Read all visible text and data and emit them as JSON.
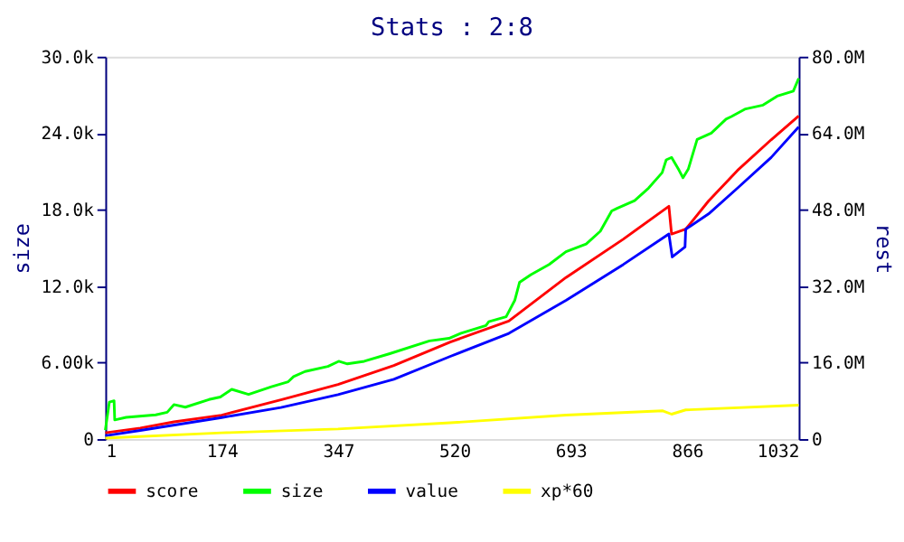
{
  "chart_data": {
    "type": "line",
    "title": "Stats : 2:8",
    "ylabel": "size",
    "y2label": "rest",
    "xlim": [
      1,
      1032
    ],
    "xticks": [
      1,
      174,
      347,
      520,
      693,
      866,
      1032
    ],
    "ylim": [
      0,
      30000
    ],
    "yticks": [
      {
        "value": 0,
        "label": "0"
      },
      {
        "value": 6000,
        "label": "6.00k"
      },
      {
        "value": 12000,
        "label": "12.0k"
      },
      {
        "value": 18000,
        "label": "18.0k"
      },
      {
        "value": 24000,
        "label": "24.0k"
      },
      {
        "value": 30000,
        "label": "30.0k"
      }
    ],
    "y2lim": [
      0,
      80000000
    ],
    "y2ticks": [
      {
        "value": 0,
        "label": "0"
      },
      {
        "value": 16000000,
        "label": "16.0M"
      },
      {
        "value": 32000000,
        "label": "32.0M"
      },
      {
        "value": 48000000,
        "label": "48.0M"
      },
      {
        "value": 64000000,
        "label": "64.0M"
      },
      {
        "value": 80000000,
        "label": "80.0M"
      }
    ],
    "grid": false,
    "legend": "bottom",
    "marker": "none",
    "line_style": "solid",
    "series": [
      {
        "name": "score",
        "color": "#ff0000",
        "axis": "y2",
        "x": [
          1,
          53,
          103,
          174,
          262,
          347,
          430,
          514,
          601,
          686,
          771,
          839,
          843,
          864,
          898,
          941,
          991,
          1032
        ],
        "values": [
          1300000,
          2300000,
          3600000,
          5000000,
          8200000,
          11400000,
          15400000,
          20300000,
          24700000,
          33800000,
          41800000,
          48700000,
          42900000,
          43900000,
          49800000,
          56200000,
          62600000,
          67600000
        ]
      },
      {
        "name": "size",
        "color": "#00ff00",
        "x": [
          1,
          7,
          14,
          15,
          32,
          76,
          93,
          103,
          120,
          155,
          172,
          189,
          214,
          248,
          273,
          281,
          298,
          332,
          348,
          361,
          386,
          424,
          483,
          512,
          530,
          567,
          571,
          597,
          610,
          617,
          634,
          661,
          686,
          716,
          737,
          754,
          762,
          788,
          809,
          829,
          835,
          843,
          854,
          860,
          868,
          881,
          902,
          924,
          932,
          953,
          979,
          1000,
          1024,
          1032
        ],
        "values": [
          700,
          2900,
          3000,
          1500,
          1700,
          1900,
          2100,
          2700,
          2500,
          3100,
          3300,
          3900,
          3500,
          4100,
          4500,
          4900,
          5300,
          5700,
          6100,
          5900,
          6100,
          6700,
          7700,
          7900,
          8300,
          8900,
          9200,
          9600,
          10900,
          12300,
          12900,
          13700,
          14700,
          15300,
          16300,
          17900,
          18100,
          18700,
          19700,
          20900,
          21900,
          22100,
          21100,
          20500,
          21200,
          23500,
          24000,
          25100,
          25300,
          25900,
          26200,
          26900,
          27300,
          28300
        ]
      },
      {
        "name": "value",
        "color": "#0000ff",
        "axis": "y2",
        "x": [
          1,
          53,
          174,
          262,
          347,
          430,
          514,
          601,
          686,
          771,
          839,
          844,
          863,
          864,
          898,
          941,
          991,
          1032
        ],
        "values": [
          700000,
          1800000,
          4500000,
          6600000,
          9300000,
          12500000,
          17300000,
          22100000,
          29000000,
          36500000,
          42900000,
          38100000,
          40200000,
          43900000,
          47100000,
          52500000,
          58900000,
          65300000
        ]
      },
      {
        "name": "xp*60",
        "color": "#ffff00",
        "axis": "y2",
        "x": [
          1,
          174,
          347,
          514,
          686,
          830,
          843,
          864,
          1032
        ],
        "values": [
          200000,
          1300000,
          2100000,
          3400000,
          5000000,
          5900000,
          5200000,
          6100000,
          7100000
        ]
      }
    ]
  }
}
